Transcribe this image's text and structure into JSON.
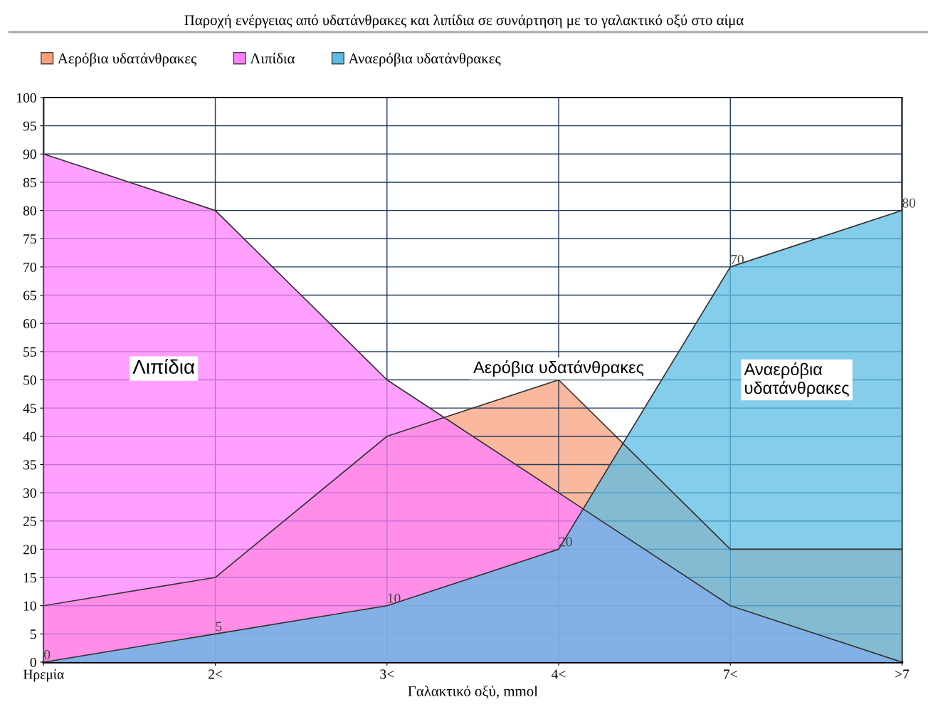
{
  "chart_data": {
    "type": "area",
    "title": "Παροχή ενέργειας από υδατάνθρακες και λιπίδια σε συνάρτηση με το γαλακτικό οξύ στο αίμα",
    "xlabel": "Γαλακτικό οξύ, mmol",
    "categories": [
      "Ηρεμία",
      "2<",
      "3<",
      "4<",
      "7<",
      ">7"
    ],
    "series": [
      {
        "name": "Αερόβια υδατάνθρακες",
        "color": "#f8a07e",
        "values": [
          10,
          15,
          40,
          50,
          20,
          20
        ]
      },
      {
        "name": "Λιπίδια",
        "color": "#ff80ff",
        "values": [
          90,
          80,
          50,
          30,
          10,
          0
        ]
      },
      {
        "name": "Αναερόβια υδατάνθρακες",
        "color": "#5bbce4",
        "values": [
          0,
          5,
          10,
          20,
          70,
          80
        ],
        "value_labels": [
          "0",
          "5",
          "10",
          "20",
          "70",
          "80"
        ]
      }
    ],
    "annotations": [
      "Λιπίδια",
      "Αερόβια υδατάνθρακες",
      "Αναερόβια\nυδατάνθρακες"
    ],
    "ylim": [
      0,
      100
    ],
    "yticks": [
      0,
      5,
      10,
      15,
      20,
      25,
      30,
      35,
      40,
      45,
      50,
      55,
      60,
      65,
      70,
      75,
      80,
      85,
      90,
      95,
      100
    ],
    "grid": true,
    "legend": "top left"
  }
}
